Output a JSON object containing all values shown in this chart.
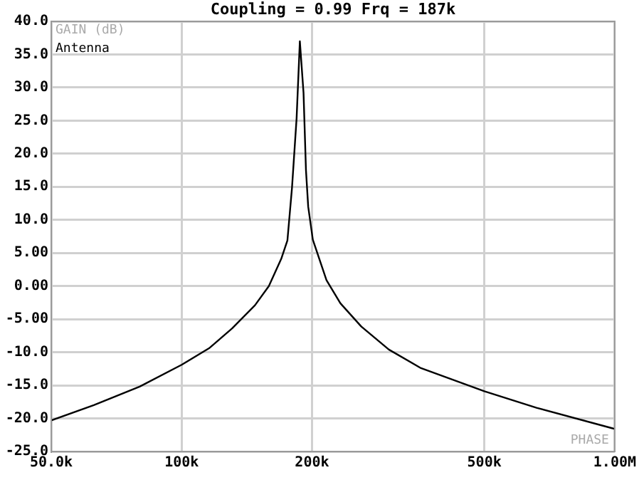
{
  "chart_data": {
    "type": "line",
    "title": "Coupling = 0.99 Frq = 187k",
    "ylabel": "GAIN (dB)",
    "annotations": [
      "PHASE"
    ],
    "log": "x",
    "grid": true,
    "legend": "top left",
    "marker": "none",
    "line_style": "solid",
    "xlim": [
      50000,
      1000000
    ],
    "xticks": [
      {
        "value": 50000,
        "label": "50.0k"
      },
      {
        "value": 100000,
        "label": "100k"
      },
      {
        "value": 200000,
        "label": "200k"
      },
      {
        "value": 500000,
        "label": "500k"
      },
      {
        "value": 1000000,
        "label": "1.00M"
      }
    ],
    "ylim": [
      -25,
      40
    ],
    "yticks": [
      {
        "value": 40,
        "label": "40.0"
      },
      {
        "value": 35,
        "label": "35.0"
      },
      {
        "value": 30,
        "label": "30.0"
      },
      {
        "value": 25,
        "label": "25.0"
      },
      {
        "value": 20,
        "label": "20.0"
      },
      {
        "value": 15,
        "label": "15.0"
      },
      {
        "value": 10,
        "label": "10.0"
      },
      {
        "value": 5,
        "label": "5.00"
      },
      {
        "value": 0,
        "label": "0.00"
      },
      {
        "value": -5,
        "label": "-5.00"
      },
      {
        "value": -10,
        "label": "-10.0"
      },
      {
        "value": -15,
        "label": "-15.0"
      },
      {
        "value": -20,
        "label": "-20.0"
      },
      {
        "value": -25,
        "label": "-25.0"
      }
    ],
    "x": [
      50000,
      62700,
      80000,
      100000,
      115700,
      130800,
      147700,
      159000,
      169800,
      175500,
      179800,
      184300,
      187500,
      191200,
      193700,
      196000,
      200900,
      216000,
      232600,
      259800,
      301000,
      357000,
      500000,
      660000,
      989000,
      1000000
    ],
    "series": [
      {
        "name": "Antenna",
        "color": "#000000",
        "values": [
          -20.3,
          -18.0,
          -15.2,
          -11.9,
          -9.4,
          -6.4,
          -2.9,
          0,
          4.1,
          6.9,
          14.8,
          25.4,
          37,
          29.2,
          17.5,
          12,
          7,
          0.9,
          -2.6,
          -6.1,
          -9.6,
          -12.4,
          -15.9,
          -18.4,
          -21.5,
          -21.6
        ]
      }
    ]
  }
}
